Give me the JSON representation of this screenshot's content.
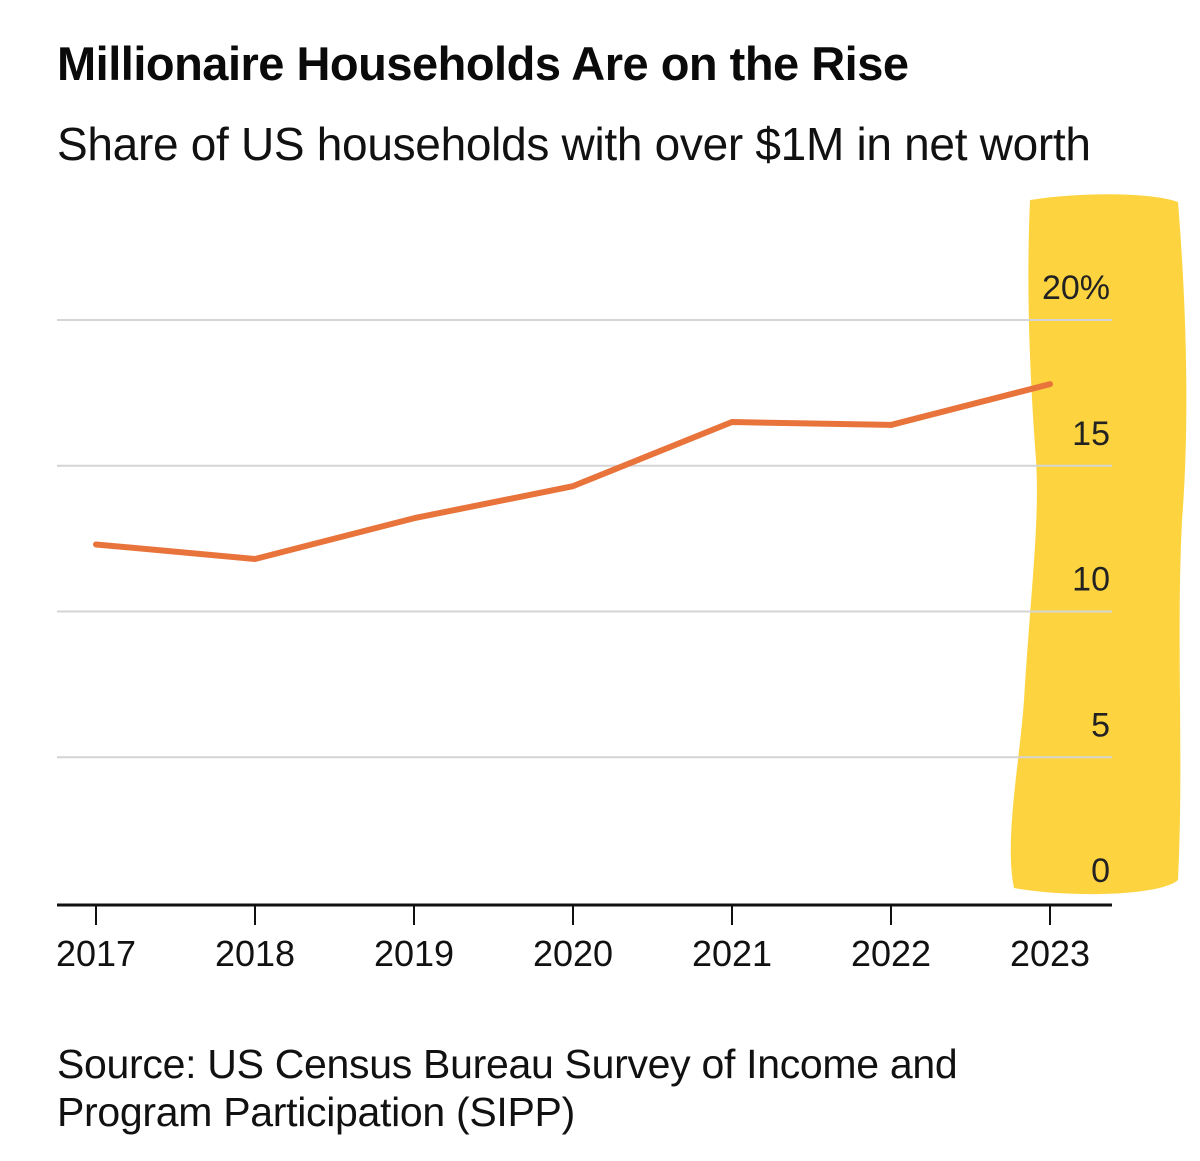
{
  "chart_data": {
    "type": "line",
    "title": "Millionaire Households Are on the Rise",
    "subtitle": "Share of US households with over $1M in net worth",
    "source": "Source: US Census Bureau Survey of Income and Program Participation (SIPP)",
    "xlabel": "",
    "ylabel": "",
    "x": [
      "2017",
      "2018",
      "2019",
      "2020",
      "2021",
      "2022",
      "2023"
    ],
    "series": [
      {
        "name": "Share of US households with over $1M in net worth",
        "values": [
          12.3,
          11.8,
          13.2,
          14.3,
          16.5,
          16.4,
          17.8
        ],
        "color": "#e8743b"
      }
    ],
    "ylim": [
      0,
      20
    ],
    "yticks": [
      0,
      5,
      10,
      15,
      20
    ],
    "ytick_labels": [
      "0",
      "5",
      "10",
      "15",
      "20%"
    ],
    "grid": true,
    "y_axis_side": "right",
    "highlight": {
      "target": "y-axis labels",
      "color": "#fdd235"
    }
  }
}
